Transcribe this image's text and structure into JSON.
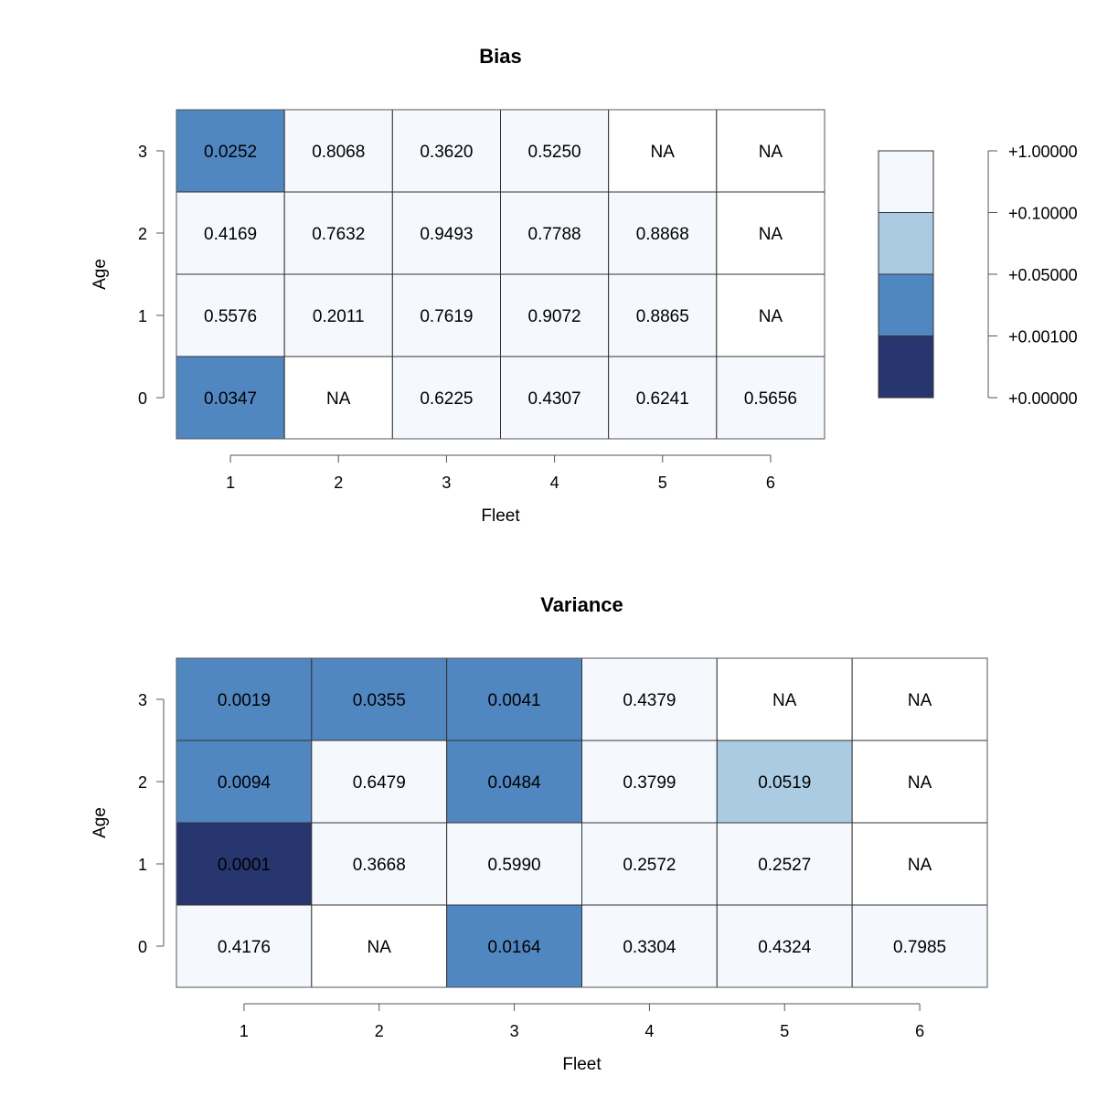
{
  "chart_data": [
    {
      "type": "heatmap",
      "title": "Bias",
      "xlabel": "Fleet",
      "ylabel": "Age",
      "x_categories": [
        "1",
        "2",
        "3",
        "4",
        "5",
        "6"
      ],
      "y_categories": [
        "3",
        "2",
        "1",
        "0"
      ],
      "values": [
        [
          "0.0252",
          "0.8068",
          "0.3620",
          "0.5250",
          "NA",
          "NA"
        ],
        [
          "0.4169",
          "0.7632",
          "0.9493",
          "0.7788",
          "0.8868",
          "NA"
        ],
        [
          "0.5576",
          "0.2011",
          "0.7619",
          "0.9072",
          "0.8865",
          "NA"
        ],
        [
          "0.0347",
          "NA",
          "0.6225",
          "0.4307",
          "0.6241",
          "0.5656"
        ]
      ]
    },
    {
      "type": "heatmap",
      "title": "Variance",
      "xlabel": "Fleet",
      "ylabel": "Age",
      "x_categories": [
        "1",
        "2",
        "3",
        "4",
        "5",
        "6"
      ],
      "y_categories": [
        "3",
        "2",
        "1",
        "0"
      ],
      "values": [
        [
          "0.0019",
          "0.0355",
          "0.0041",
          "0.4379",
          "NA",
          "NA"
        ],
        [
          "0.0094",
          "0.6479",
          "0.0484",
          "0.3799",
          "0.0519",
          "NA"
        ],
        [
          "0.0001",
          "0.3668",
          "0.5990",
          "0.2572",
          "0.2527",
          "NA"
        ],
        [
          "0.4176",
          "NA",
          "0.0164",
          "0.3304",
          "0.4324",
          "0.7985"
        ]
      ]
    }
  ],
  "legend": {
    "labels": [
      "+1.00000",
      "+0.10000",
      "+0.05000",
      "+0.00100",
      "+0.00000"
    ],
    "breaks": [
      1.0,
      0.1,
      0.05,
      0.001,
      0.0
    ],
    "colors": [
      "#f5f9fe",
      "#aacbe1",
      "#5187c1",
      "#27366e"
    ]
  },
  "colors": {
    "na_fill": "#ffffff",
    "border": "#333333",
    "axis": "#555555"
  }
}
